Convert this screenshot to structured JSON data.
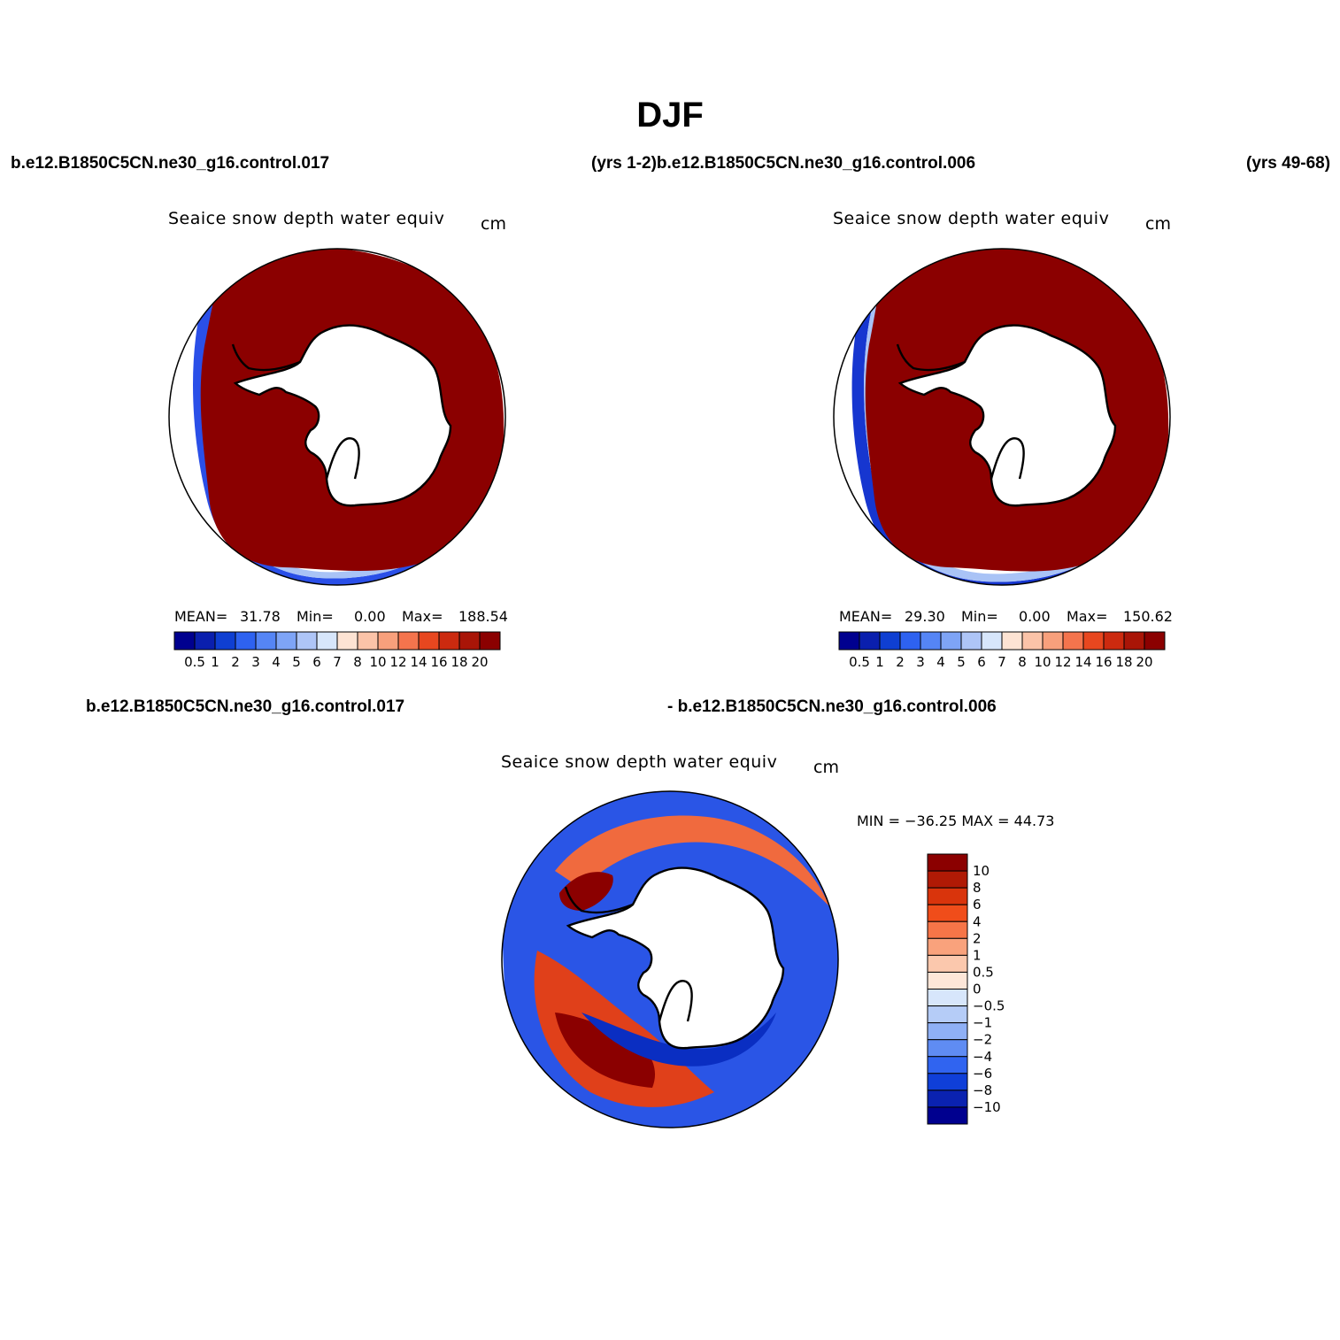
{
  "figure": {
    "title": "DJF",
    "top_left_case": "b.e12.B1850C5CN.ne30_g16.control.017",
    "top_center_case": "(yrs 1-2)b.e12.B1850C5CN.ne30_g16.control.006",
    "top_right_years": "(yrs 49-68)",
    "bottom_case_a": "b.e12.B1850C5CN.ne30_g16.control.017",
    "bottom_case_b": "- b.e12.B1850C5CN.ne30_g16.control.006"
  },
  "panels": [
    {
      "id": "case-017",
      "title": "Seaice snow depth water equiv",
      "units": "cm",
      "mean_label": "MEAN=",
      "mean": "31.78",
      "min_label": "Min=",
      "min": "0.00",
      "max_label": "Max=",
      "max": "188.54"
    },
    {
      "id": "case-006",
      "title": "Seaice snow depth water equiv",
      "units": "cm",
      "mean_label": "MEAN=",
      "mean": "29.30",
      "min_label": "Min=",
      "min": "0.00",
      "max_label": "Max=",
      "max": "150.62"
    },
    {
      "id": "difference",
      "title": "Seaice snow depth water equiv",
      "units": "cm",
      "minmax_text": "MIN = −36.25 MAX =   44.73"
    }
  ],
  "colorbars": {
    "horizontal": {
      "labels": [
        "0.5",
        "1",
        "2",
        "3",
        "4",
        "5",
        "6",
        "7",
        "8",
        "10",
        "12",
        "14",
        "16",
        "18",
        "20"
      ],
      "colors": [
        "#00008f",
        "#0a1fae",
        "#0f3fd2",
        "#2e62f0",
        "#5585f5",
        "#7ea4f6",
        "#aec5f7",
        "#d7e6fb",
        "#fde3d3",
        "#fbc3a8",
        "#f8a07c",
        "#f4744d",
        "#e8471f",
        "#cc2a0f",
        "#a91507",
        "#8b0000"
      ]
    },
    "vertical": {
      "labels": [
        "10",
        "8",
        "6",
        "4",
        "2",
        "1",
        "0.5",
        "0",
        "−0.5",
        "−1",
        "−2",
        "−4",
        "−6",
        "−8",
        "−10"
      ],
      "colors": [
        "#8b0000",
        "#b01a05",
        "#d9340c",
        "#f04d1a",
        "#f67548",
        "#f9a27c",
        "#fbc8ad",
        "#fde6d8",
        "#d7e6fb",
        "#b5ccf7",
        "#8fb0f5",
        "#5f8cf3",
        "#3064f0",
        "#0f3fd8",
        "#0a22b0",
        "#00008f"
      ]
    }
  },
  "colors": {
    "ice_dark_red": "#8b0000",
    "ice_edge_blue": "#1a3ee0",
    "land": "#ffffff",
    "coast": "#000000"
  }
}
